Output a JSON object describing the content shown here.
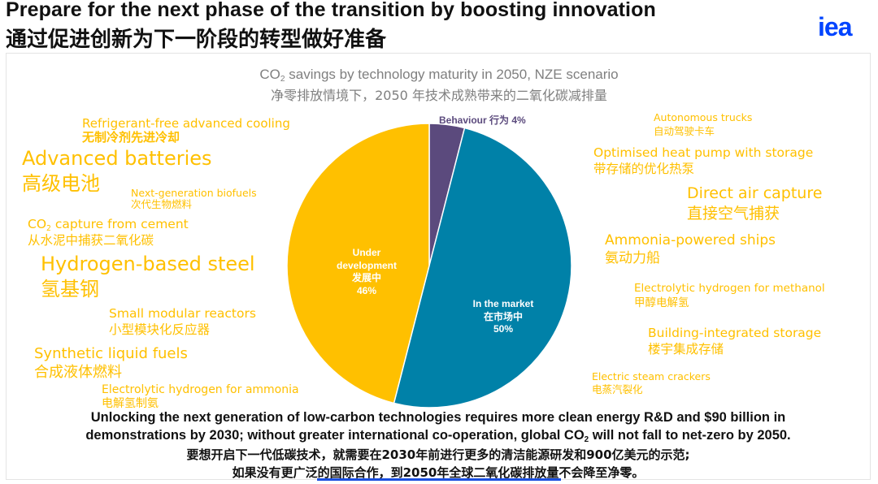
{
  "header": {
    "title_en": "Prepare for the next phase of the transition by boosting innovation",
    "title_zh": "通过促进创新为下一阶段的转型做好准备",
    "logo": "iea"
  },
  "chart_data": {
    "type": "pie",
    "title_en_prefix": "CO",
    "title_en_sub": "2",
    "title_en_suffix": " savings by technology maturity in 2050, NZE scenario",
    "title_zh": "净零排放情境下，2050 年技术成熟带来的二氧化碳减排量",
    "slices": [
      {
        "name_en": "Behaviour",
        "name_zh": "行为",
        "value": 4,
        "label": "4%",
        "color": "#5b4a7d"
      },
      {
        "name_en": "In the market",
        "name_zh": "在市场中",
        "value": 50,
        "label": "50%",
        "color": "#0081a8"
      },
      {
        "name_en": "Under development",
        "name_zh": "发展中",
        "value": 46,
        "label": "46%",
        "color": "#ffc000"
      }
    ],
    "slice_labels": {
      "behaviour": "Behaviour 行为 4%",
      "market": [
        "In the market",
        "在市场中",
        "50%"
      ],
      "under_dev": [
        "Under",
        "development",
        "发展中",
        "46%"
      ]
    },
    "annotations_color": "#ffc000",
    "annotations_left": [
      {
        "en": "Refrigerant-free advanced cooling",
        "zh": "无制冷剂先进冷却"
      },
      {
        "en": "Advanced batteries",
        "zh": "高级电池"
      },
      {
        "en": "Next-generation biofuels",
        "zh": "次代生物燃料"
      },
      {
        "en_prefix": "CO",
        "en_sub": "2",
        "en_suffix": " capture from cement",
        "zh": "从水泥中捕获二氧化碳"
      },
      {
        "en": "Hydrogen-based steel",
        "zh": "氢基钢"
      },
      {
        "en": "Small modular reactors",
        "zh": "小型模块化反应器"
      },
      {
        "en": "Synthetic liquid fuels",
        "zh": "合成液体燃料"
      },
      {
        "en": "Electrolytic hydrogen for ammonia",
        "zh": "电解氢制氨"
      }
    ],
    "annotations_right": [
      {
        "en": "Autonomous trucks",
        "zh": "自动驾驶卡车"
      },
      {
        "en": "Optimised heat pump with storage",
        "zh": "带存储的优化热泵"
      },
      {
        "en": "Direct air capture",
        "zh": "直接空气捕获"
      },
      {
        "en": "Ammonia-powered ships",
        "zh": "氨动力船"
      },
      {
        "en": "Electrolytic hydrogen for methanol",
        "zh": "甲醇电解氢"
      },
      {
        "en": "Building-integrated storage",
        "zh": "楼宇集成存储"
      },
      {
        "en": "Electric steam crackers",
        "zh": "电蒸汽裂化"
      }
    ]
  },
  "footer": {
    "line1": "Unlocking the next generation of low-carbon technologies requires more clean energy R&D and $90 billion in",
    "line2_prefix": "demonstrations by 2030; without greater international co-operation, global CO",
    "line2_sub": "2",
    "line2_suffix": " will not fall to net-zero by 2050.",
    "line3": "要想开启下一代低碳技术，就需要在2030年前进行更多的清洁能源研发和900亿美元的示范;",
    "line4": "如果没有更广泛的国际合作，到2050年全球二氧化碳排放量不会降至净零。"
  }
}
